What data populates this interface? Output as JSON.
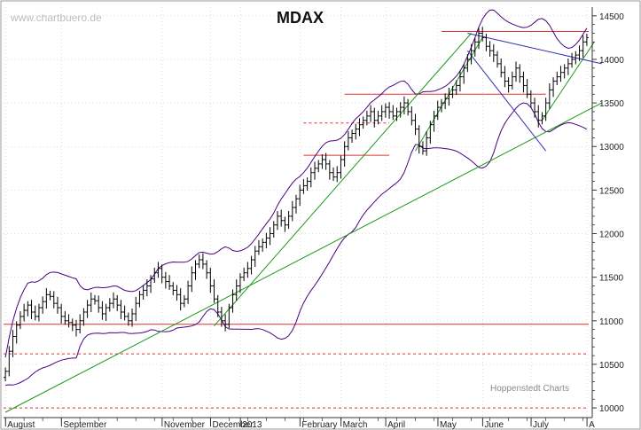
{
  "watermark": "www.chartbuero.de",
  "credit": "Hoppenstedt Charts",
  "colors": {
    "price": "#000000",
    "band": "#4b0082",
    "hline": "#e03030",
    "trend_green": "#1a9a1a",
    "trend_blue": "#3030b0",
    "grid": "#c8c8c8"
  },
  "chart_data": {
    "type": "ohlc",
    "title": "MDAX",
    "y_side": "right",
    "ylim": [
      9950,
      14600
    ],
    "yticks": [
      10000,
      10500,
      11000,
      11500,
      12000,
      12500,
      13000,
      13500,
      14000,
      14500
    ],
    "ytick_labels": [
      "10000",
      "10500",
      "11000",
      "11500",
      "12000",
      "12500",
      "13000",
      "13500",
      "14000",
      "14500"
    ],
    "x_labels": [
      "August",
      "September",
      "November",
      "December",
      "2013",
      "February",
      "March",
      "April",
      "May",
      "June",
      "July",
      "A"
    ],
    "grid": true,
    "series": [
      {
        "style": "ohlc",
        "close": [
          10420,
          10650,
          10820,
          10950,
          11050,
          11120,
          11180,
          11100,
          11050,
          11150,
          11220,
          11300,
          11280,
          11200,
          11150,
          11050,
          11000,
          10980,
          10950,
          10900,
          11000,
          11100,
          11180,
          11250,
          11230,
          11150,
          11080,
          11150,
          11200,
          11250,
          11180,
          11100,
          11050,
          11000,
          11080,
          11200,
          11300,
          11350,
          11400,
          11480,
          11550,
          11600,
          11500,
          11450,
          11400,
          11350,
          11300,
          11200,
          11250,
          11400,
          11550,
          11650,
          11700,
          11650,
          11550,
          11400,
          11250,
          11100,
          11000,
          10960,
          11150,
          11300,
          11400,
          11500,
          11550,
          11600,
          11700,
          11800,
          11850,
          11900,
          11950,
          12000,
          12100,
          12200,
          12150,
          12100,
          12200,
          12300,
          12400,
          12500,
          12550,
          12600,
          12700,
          12750,
          12800,
          12850,
          12800,
          12700,
          12650,
          12700,
          12850,
          13000,
          13100,
          13150,
          13200,
          13250,
          13300,
          13350,
          13400,
          13300,
          13350,
          13400,
          13450,
          13400,
          13350,
          13400,
          13450,
          13500,
          13400,
          13300,
          13200,
          13000,
          12950,
          13100,
          13250,
          13350,
          13450,
          13500,
          13550,
          13600,
          13650,
          13700,
          13800,
          13900,
          14000,
          14100,
          14200,
          14300,
          14250,
          14150,
          14100,
          14050,
          13950,
          13850,
          13750,
          13700,
          13800,
          13900,
          13800,
          13700,
          13600,
          13500,
          13400,
          13300,
          13350,
          13500,
          13650,
          13750,
          13800,
          13850,
          13900,
          13950,
          14000,
          14050,
          14100,
          14200,
          14250
        ],
        "open": [
          10350,
          10420,
          10650,
          10820,
          10950,
          11050,
          11120,
          11180,
          11100,
          11050,
          11150,
          11220,
          11300,
          11280,
          11200,
          11150,
          11050,
          11000,
          10980,
          10950,
          10900,
          11000,
          11100,
          11180,
          11250,
          11230,
          11150,
          11080,
          11150,
          11200,
          11250,
          11180,
          11100,
          11050,
          11000,
          11080,
          11200,
          11300,
          11350,
          11400,
          11480,
          11550,
          11600,
          11500,
          11450,
          11400,
          11350,
          11300,
          11200,
          11250,
          11400,
          11550,
          11650,
          11700,
          11650,
          11550,
          11400,
          11250,
          11100,
          11000,
          10960,
          11150,
          11300,
          11400,
          11500,
          11550,
          11600,
          11700,
          11800,
          11850,
          11900,
          11950,
          12000,
          12100,
          12200,
          12150,
          12100,
          12200,
          12300,
          12400,
          12500,
          12550,
          12600,
          12700,
          12750,
          12800,
          12850,
          12800,
          12700,
          12650,
          12700,
          12850,
          13000,
          13100,
          13150,
          13200,
          13250,
          13300,
          13350,
          13400,
          13300,
          13350,
          13400,
          13450,
          13400,
          13350,
          13400,
          13450,
          13500,
          13400,
          13300,
          13200,
          13000,
          12950,
          13100,
          13250,
          13350,
          13450,
          13500,
          13550,
          13600,
          13650,
          13700,
          13800,
          13900,
          14000,
          14100,
          14200,
          14300,
          14250,
          14150,
          14100,
          14050,
          13950,
          13850,
          13750,
          13700,
          13800,
          13900,
          13800,
          13700,
          13600,
          13500,
          13400,
          13300,
          13350,
          13500,
          13650,
          13750,
          13800,
          13850,
          13900,
          13950,
          14000,
          14050,
          14100,
          14200
        ]
      }
    ],
    "overlays": [
      {
        "kind": "bollinger-band",
        "band": "upper",
        "name": ""
      },
      {
        "kind": "bollinger-band",
        "band": "lower",
        "name": ""
      }
    ],
    "horizontal_lines": [
      {
        "y": 14320,
        "style": "solid",
        "from": "May",
        "to": "end"
      },
      {
        "y": 13600,
        "style": "solid",
        "from": "March",
        "to": "July"
      },
      {
        "y": 13270,
        "style": "dashed",
        "from": "February",
        "to": "April"
      },
      {
        "y": 12900,
        "style": "solid",
        "from": "February",
        "to": "April"
      },
      {
        "y": 10960,
        "style": "solid",
        "from": "start",
        "to": "end"
      },
      {
        "y": 10620,
        "style": "dashed",
        "from": "start",
        "to": "end"
      },
      {
        "y": 10000,
        "style": "dashed",
        "from": "start",
        "to": "end"
      }
    ],
    "trendlines": [
      {
        "color": "green",
        "from": [
          0,
          9950
        ],
        "to": [
          160,
          13500
        ]
      },
      {
        "color": "green",
        "from": [
          56,
          10940
        ],
        "to": [
          125,
          14300
        ]
      },
      {
        "color": "green",
        "from": [
          110,
          12950
        ],
        "to": [
          128,
          14250
        ]
      },
      {
        "color": "green",
        "from": [
          144,
          13300
        ],
        "to": [
          158,
          14200
        ]
      },
      {
        "color": "blue",
        "from": [
          124,
          14300
        ],
        "to": [
          160,
          13950
        ]
      },
      {
        "color": "blue",
        "from": [
          124,
          14100
        ],
        "to": [
          145,
          12950
        ]
      }
    ]
  }
}
